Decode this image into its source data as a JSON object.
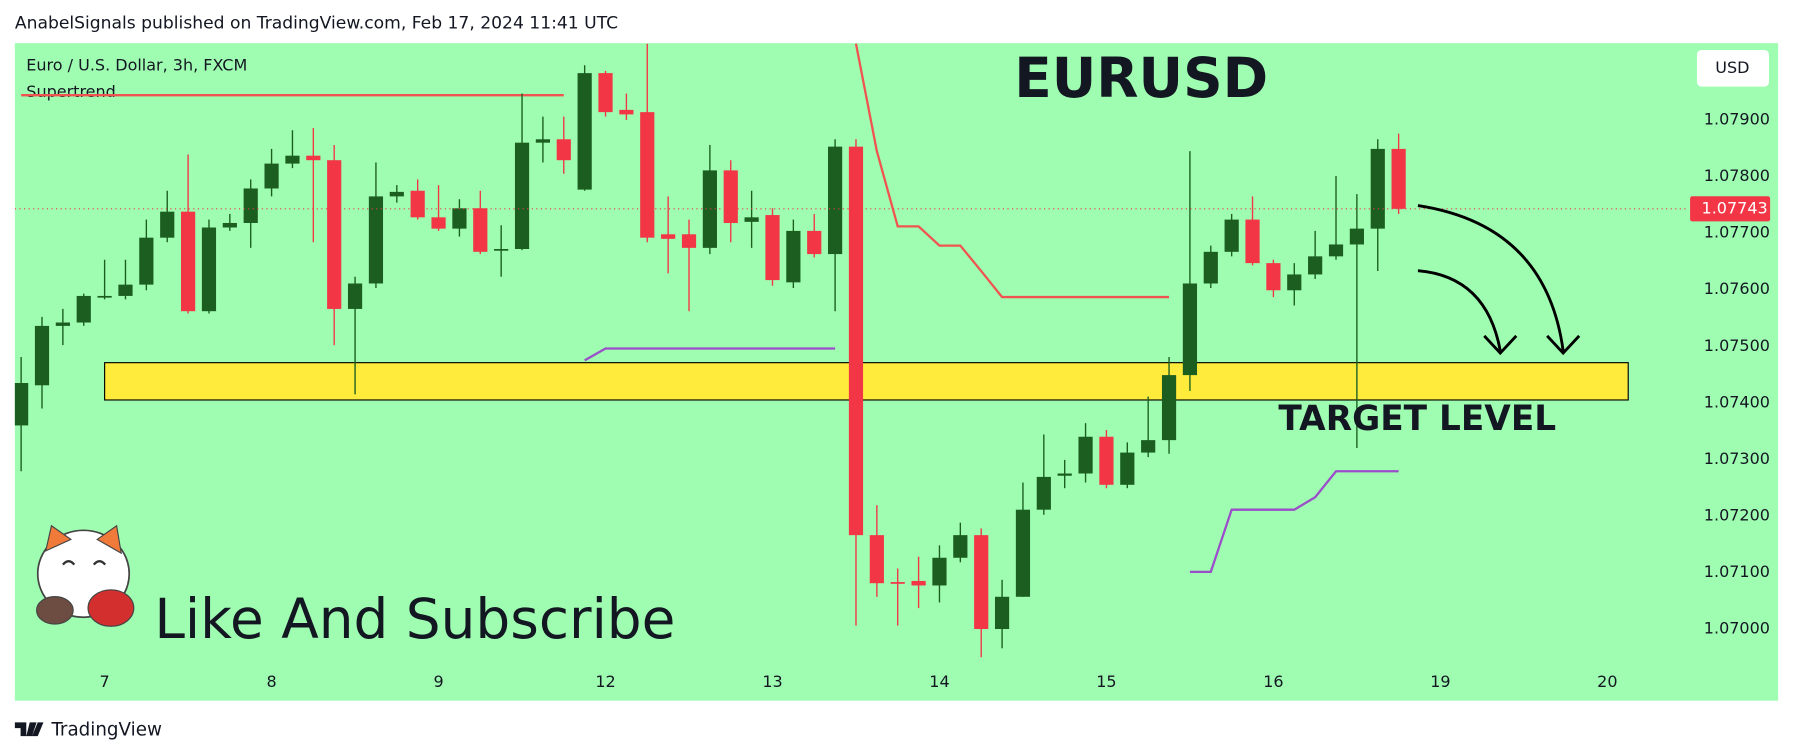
{
  "header": {
    "text": "AnabelSignals published on TradingView.com, Feb 17, 2024 11:41 UTC"
  },
  "footer": {
    "brand": "TradingView"
  },
  "chart_data": {
    "type": "candlestick",
    "title": "EURUSD",
    "symbol": "Euro / U.S. Dollar, 3h, FXCM",
    "indicator": "Supertrend",
    "currency": "USD",
    "annotation": "Like And Subscribe",
    "up_color": "#1b5e20",
    "down_color": "#f23645",
    "background": "#9ffdb1",
    "open": [
      1.0736,
      1.07431,
      1.07536,
      1.07542,
      1.07587,
      1.07589,
      1.07609,
      1.07692,
      1.07738,
      1.07562,
      1.0771,
      1.07718,
      1.07779,
      1.07823,
      1.07837,
      1.07829,
      1.07566,
      1.07611,
      1.07765,
      1.07775,
      1.07728,
      1.07708,
      1.07744,
      1.0767,
      1.07672,
      1.0786,
      1.07866,
      1.07777,
      1.07983,
      1.07918,
      1.07914,
      1.07698,
      1.07698,
      1.07674,
      1.07811,
      1.0772,
      1.07732,
      1.07613,
      1.07704,
      1.07663,
      1.07853,
      1.07166,
      1.07083,
      1.07085,
      1.07077,
      1.07126,
      1.07166,
      1.07,
      1.07057,
      1.07211,
      1.07271,
      1.07275,
      1.0734,
      1.07255,
      1.07312,
      1.07334,
      1.07449,
      1.07611,
      1.07667,
      1.07724,
      1.07647,
      1.07599,
      1.07627,
      1.07659,
      1.0768,
      1.07708,
      1.07849
    ],
    "high": [
      1.07481,
      1.07552,
      1.07566,
      1.07593,
      1.07653,
      1.07653,
      1.07724,
      1.07775,
      1.07839,
      1.07724,
      1.07734,
      1.07795,
      1.07849,
      1.07882,
      1.07886,
      1.07856,
      1.07623,
      1.07825,
      1.07785,
      1.07795,
      1.07785,
      1.0776,
      1.07775,
      1.07714,
      1.07947,
      1.07906,
      1.07906,
      1.07997,
      1.07987,
      1.07947,
      1.08035,
      1.07765,
      1.07724,
      1.07856,
      1.07829,
      1.07775,
      1.07744,
      1.07724,
      1.07734,
      1.07866,
      1.07866,
      1.07219,
      1.07107,
      1.07128,
      1.07148,
      1.07188,
      1.07178,
      1.07087,
      1.07259,
      1.07344,
      1.07299,
      1.07364,
      1.07352,
      1.0733,
      1.07411,
      1.07481,
      1.07845,
      1.07678,
      1.07734,
      1.07765,
      1.07653,
      1.07647,
      1.07704,
      1.07801,
      1.07769,
      1.07866,
      1.07876
    ],
    "low": [
      1.07279,
      1.0739,
      1.07502,
      1.07536,
      1.07583,
      1.07583,
      1.07599,
      1.07684,
      1.07558,
      1.07558,
      1.07704,
      1.07674,
      1.07765,
      1.07815,
      1.07684,
      1.07502,
      1.07415,
      1.07603,
      1.07754,
      1.07724,
      1.07704,
      1.07694,
      1.07663,
      1.07623,
      1.0767,
      1.07825,
      1.07805,
      1.07775,
      1.07906,
      1.079,
      1.07684,
      1.07629,
      1.07562,
      1.07663,
      1.07684,
      1.07674,
      1.07607,
      1.07603,
      1.07657,
      1.07562,
      1.07006,
      1.07057,
      1.07006,
      1.07037,
      1.07047,
      1.07118,
      1.0695,
      1.06966,
      1.07057,
      1.07202,
      1.07249,
      1.07259,
      1.07249,
      1.07249,
      1.07304,
      1.0731,
      1.07421,
      1.07603,
      1.07659,
      1.07643,
      1.07587,
      1.07572,
      1.07619,
      1.07653,
      1.0732,
      1.07633,
      1.07734
    ],
    "close": [
      1.07435,
      1.07536,
      1.07542,
      1.07589,
      1.07589,
      1.07609,
      1.07692,
      1.07738,
      1.07562,
      1.0771,
      1.07718,
      1.07779,
      1.07823,
      1.07837,
      1.07829,
      1.07566,
      1.07611,
      1.07765,
      1.07773,
      1.07728,
      1.07708,
      1.07744,
      1.07667,
      1.07672,
      1.0786,
      1.07866,
      1.07829,
      1.07983,
      1.07914,
      1.0791,
      1.07692,
      1.0769,
      1.07674,
      1.07811,
      1.07718,
      1.07728,
      1.07617,
      1.07704,
      1.07663,
      1.07853,
      1.07166,
      1.07081,
      1.07081,
      1.07077,
      1.07126,
      1.07166,
      1.07,
      1.07057,
      1.07211,
      1.07269,
      1.07275,
      1.0734,
      1.07255,
      1.07312,
      1.07334,
      1.07449,
      1.07611,
      1.07667,
      1.07724,
      1.07647,
      1.07599,
      1.07627,
      1.07659,
      1.0768,
      1.07708,
      1.07849,
      1.07743
    ],
    "supertrend": {
      "upper": {
        "color": "#f05350",
        "values": [
          1.07944,
          1.07944,
          1.07944,
          1.07944,
          1.07944,
          1.07944,
          1.07944,
          1.07944,
          1.07944,
          1.07944,
          1.07944,
          1.07944,
          1.07944,
          1.07944,
          1.07944,
          1.07944,
          1.07944,
          1.07944,
          1.07944,
          1.07944,
          1.07944,
          1.07944,
          1.07944,
          1.07944,
          1.07944,
          1.07944,
          1.07944,
          null,
          null,
          null,
          null,
          null,
          null,
          null,
          null,
          null,
          null,
          null,
          null,
          null,
          1.08035,
          1.07845,
          1.07712,
          1.07712,
          1.07678,
          1.07678,
          1.07633,
          1.07587,
          1.07587,
          1.07587,
          1.07587,
          1.07587,
          1.07587,
          1.07587,
          1.07587,
          1.07587,
          null,
          null,
          null,
          null,
          null,
          null,
          null,
          null,
          null,
          null,
          null
        ]
      },
      "lower": {
        "color": "#9b4dca",
        "values": [
          null,
          null,
          null,
          null,
          null,
          null,
          null,
          null,
          null,
          null,
          null,
          null,
          null,
          null,
          null,
          null,
          null,
          null,
          null,
          null,
          null,
          null,
          null,
          null,
          null,
          null,
          null,
          1.07475,
          1.07496,
          1.07496,
          1.07496,
          1.07496,
          1.07496,
          1.07496,
          1.07496,
          1.07496,
          1.07496,
          1.07496,
          1.07496,
          1.07496,
          null,
          null,
          null,
          null,
          null,
          null,
          null,
          null,
          null,
          null,
          null,
          null,
          null,
          null,
          null,
          null,
          1.07101,
          1.07101,
          1.07211,
          1.07211,
          1.07211,
          1.07211,
          1.07233,
          1.07279,
          1.07279,
          1.07279,
          1.07279
        ]
      }
    },
    "last_price": 1.07743,
    "last_price_color": "#f23645",
    "zone": {
      "label": "TARGET LEVEL",
      "top": 1.07471,
      "bottom": 1.07405,
      "x_start": 4,
      "x_end": 77,
      "color": "#ffeb3b"
    },
    "xlim": [
      -0.3,
      79.8
    ],
    "xticks": [
      {
        "value": 4,
        "label": "7"
      },
      {
        "value": 12,
        "label": "8"
      },
      {
        "value": 20,
        "label": "9"
      },
      {
        "value": 28,
        "label": "12"
      },
      {
        "value": 36,
        "label": "13"
      },
      {
        "value": 44,
        "label": "14"
      },
      {
        "value": 52,
        "label": "15"
      },
      {
        "value": 60,
        "label": "16"
      },
      {
        "value": 68,
        "label": "19"
      },
      {
        "value": 76,
        "label": "20"
      }
    ],
    "ylim": [
      1.0694,
      1.0804
    ],
    "yticks": [
      {
        "value": 1.07,
        "label": "1.07000"
      },
      {
        "value": 1.071,
        "label": "1.07100"
      },
      {
        "value": 1.072,
        "label": "1.07200"
      },
      {
        "value": 1.073,
        "label": "1.07300"
      },
      {
        "value": 1.074,
        "label": "1.07400"
      },
      {
        "value": 1.075,
        "label": "1.07500"
      },
      {
        "value": 1.076,
        "label": "1.07600"
      },
      {
        "value": 1.077,
        "label": "1.07700"
      },
      {
        "value": 1.078,
        "label": "1.07800"
      },
      {
        "value": 1.079,
        "label": "1.07900"
      }
    ],
    "grid": false
  }
}
